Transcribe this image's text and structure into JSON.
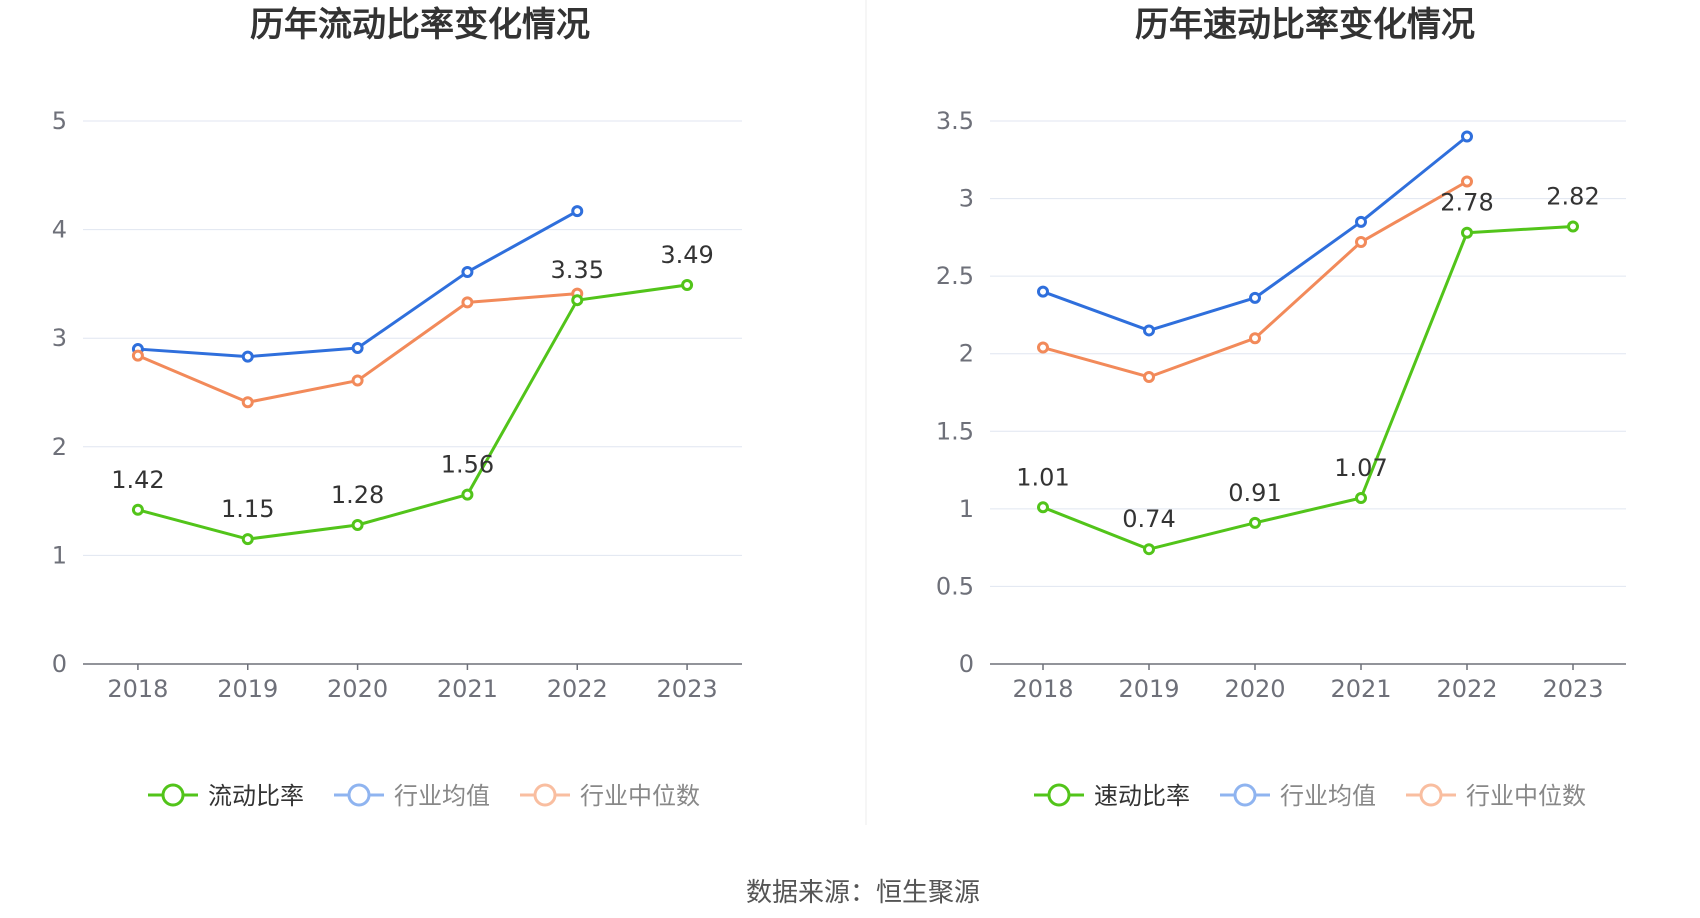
{
  "charts": [
    {
      "title": "历年流动比率变化情况",
      "chart_data": {
        "type": "line",
        "categories": [
          "2018",
          "2019",
          "2020",
          "2021",
          "2022",
          "2023"
        ],
        "ylim": [
          0,
          5
        ],
        "yticks": [
          "0",
          "1",
          "2",
          "3",
          "4",
          "5"
        ],
        "grid": true,
        "legend_position": "bottom",
        "series": [
          {
            "name": "流动比率",
            "color": "#52c41a",
            "values": [
              1.42,
              1.15,
              1.28,
              1.56,
              3.35,
              3.49
            ],
            "labels": [
              "1.42",
              "1.15",
              "1.28",
              "1.56",
              "3.35",
              "3.49"
            ]
          },
          {
            "name": "行业均值",
            "color": "#2f6fdc",
            "values": [
              2.9,
              2.83,
              2.91,
              3.61,
              4.17,
              null
            ]
          },
          {
            "name": "行业中位数",
            "color": "#f28a5a",
            "values": [
              2.84,
              2.41,
              2.61,
              3.33,
              3.41,
              null
            ]
          }
        ]
      }
    },
    {
      "title": "历年速动比率变化情况",
      "chart_data": {
        "type": "line",
        "categories": [
          "2018",
          "2019",
          "2020",
          "2021",
          "2022",
          "2023"
        ],
        "ylim": [
          0,
          3.5
        ],
        "yticks": [
          "0",
          "0.5",
          "1",
          "1.5",
          "2",
          "2.5",
          "3",
          "3.5"
        ],
        "grid": true,
        "legend_position": "bottom",
        "series": [
          {
            "name": "速动比率",
            "color": "#52c41a",
            "values": [
              1.01,
              0.74,
              0.91,
              1.07,
              2.78,
              2.82
            ],
            "labels": [
              "1.01",
              "0.74",
              "0.91",
              "1.07",
              "2.78",
              "2.82"
            ]
          },
          {
            "name": "行业均值",
            "color": "#2f6fdc",
            "values": [
              2.4,
              2.15,
              2.36,
              2.85,
              3.4,
              null
            ]
          },
          {
            "name": "行业中位数",
            "color": "#f28a5a",
            "values": [
              2.04,
              1.85,
              2.1,
              2.72,
              3.11,
              null
            ]
          }
        ]
      }
    }
  ],
  "source": "数据来源：恒生聚源"
}
